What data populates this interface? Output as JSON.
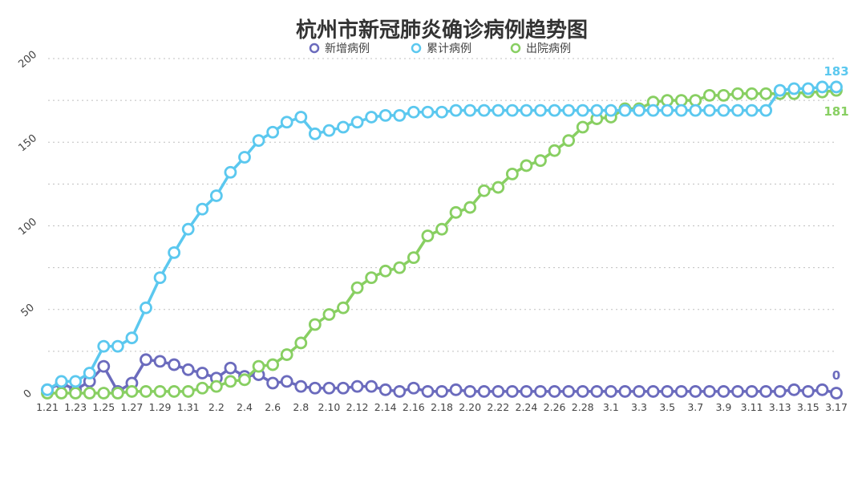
{
  "chart_data": {
    "type": "line",
    "title": "杭州市新冠肺炎确诊病例趋势图",
    "legend_position": "top",
    "grid": true,
    "ylim": [
      0,
      200
    ],
    "y_ticks": [
      0,
      50,
      100,
      150,
      200
    ],
    "x_tick_labels": [
      "1.21",
      "1.23",
      "1.25",
      "1.27",
      "1.29",
      "1.31",
      "2.2",
      "2.4",
      "2.6",
      "2.8",
      "2.10",
      "2.12",
      "2.14",
      "2.16",
      "2.18",
      "2.20",
      "2.22",
      "2.24",
      "2.26",
      "2.28",
      "3.1",
      "3.3",
      "3.5",
      "3.7",
      "3.9",
      "3.11",
      "3.13",
      "3.15",
      "3.17"
    ],
    "x_dates": [
      "1.21",
      "1.22",
      "1.23",
      "1.24",
      "1.25",
      "1.26",
      "1.27",
      "1.28",
      "1.29",
      "1.30",
      "1.31",
      "2.1",
      "2.2",
      "2.3",
      "2.4",
      "2.5",
      "2.6",
      "2.7",
      "2.8",
      "2.9",
      "2.10",
      "2.11",
      "2.12",
      "2.13",
      "2.14",
      "2.15",
      "2.16",
      "2.17",
      "2.18",
      "2.19",
      "2.20",
      "2.21",
      "2.22",
      "2.23",
      "2.24",
      "2.25",
      "2.26",
      "2.27",
      "2.28",
      "2.29",
      "3.1",
      "3.2",
      "3.3",
      "3.4",
      "3.5",
      "3.6",
      "3.7",
      "3.8",
      "3.9",
      "3.10",
      "3.11",
      "3.12",
      "3.13",
      "3.14",
      "3.15",
      "3.16",
      "3.17"
    ],
    "series": [
      {
        "name": "新增病例",
        "color": "#6b6bbd",
        "values": [
          2,
          6,
          2,
          7,
          16,
          1,
          6,
          20,
          19,
          17,
          14,
          12,
          9,
          15,
          10,
          11,
          6,
          7,
          4,
          3,
          3,
          3,
          4,
          4,
          2,
          1,
          3,
          1,
          1,
          2,
          1,
          1,
          1,
          1,
          1,
          1,
          1,
          1,
          1,
          1,
          1,
          1,
          1,
          1,
          1,
          1,
          1,
          1,
          1,
          1,
          1,
          1,
          1,
          2,
          1,
          2,
          0
        ],
        "end_label": "0"
      },
      {
        "name": "累计病例",
        "color": "#5bc8ef",
        "values": [
          2,
          7,
          7,
          12,
          28,
          28,
          33,
          51,
          69,
          84,
          98,
          110,
          118,
          132,
          141,
          151,
          156,
          162,
          165,
          155,
          157,
          159,
          162,
          165,
          166,
          166,
          168,
          168,
          168,
          169,
          169,
          169,
          169,
          169,
          169,
          169,
          169,
          169,
          169,
          169,
          169,
          169,
          169,
          169,
          169,
          169,
          169,
          169,
          169,
          169,
          169,
          169,
          181,
          182,
          182,
          183,
          183
        ],
        "end_label": "183"
      },
      {
        "name": "出院病例",
        "color": "#88cf62",
        "values": [
          0,
          0,
          0,
          0,
          0,
          0,
          1,
          1,
          1,
          1,
          1,
          3,
          4,
          7,
          8,
          16,
          17,
          23,
          30,
          41,
          47,
          51,
          63,
          69,
          73,
          75,
          81,
          94,
          98,
          108,
          111,
          121,
          123,
          131,
          136,
          139,
          145,
          151,
          159,
          164,
          165,
          170,
          170,
          174,
          175,
          175,
          175,
          178,
          178,
          179,
          179,
          179,
          179,
          179,
          180,
          180,
          181
        ],
        "end_label": "181"
      }
    ]
  }
}
